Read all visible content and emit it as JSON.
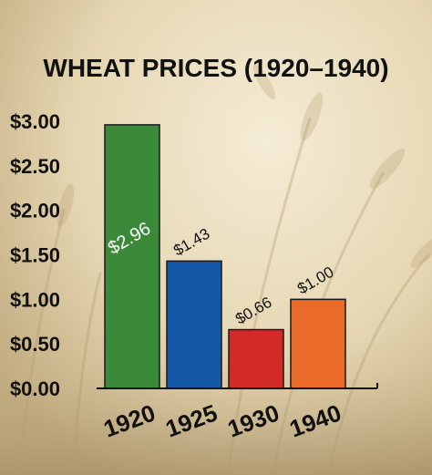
{
  "chart_data": {
    "type": "bar",
    "title": "WHEAT PRICES (1920–1940)",
    "categories": [
      "1920",
      "1925",
      "1930",
      "1940"
    ],
    "values": [
      2.96,
      1.43,
      0.66,
      1.0
    ],
    "data_labels": [
      "$2.96",
      "$1.43",
      "$0.66",
      "$1.00"
    ],
    "bar_colors": [
      "#3b8a3a",
      "#1558a8",
      "#d22a26",
      "#ea6a2a"
    ],
    "ylim": [
      0,
      3
    ],
    "yticks": [
      {
        "value": 0,
        "label": "$0.00"
      },
      {
        "value": 0.5,
        "label": "$0.50"
      },
      {
        "value": 1.0,
        "label": "$1.00"
      },
      {
        "value": 1.5,
        "label": "$1.50"
      },
      {
        "value": 2.0,
        "label": "$2.00"
      },
      {
        "value": 2.5,
        "label": "$2.50"
      },
      {
        "value": 3.0,
        "label": "$3.00"
      }
    ],
    "grid": false,
    "xlabel": "",
    "ylabel": ""
  }
}
